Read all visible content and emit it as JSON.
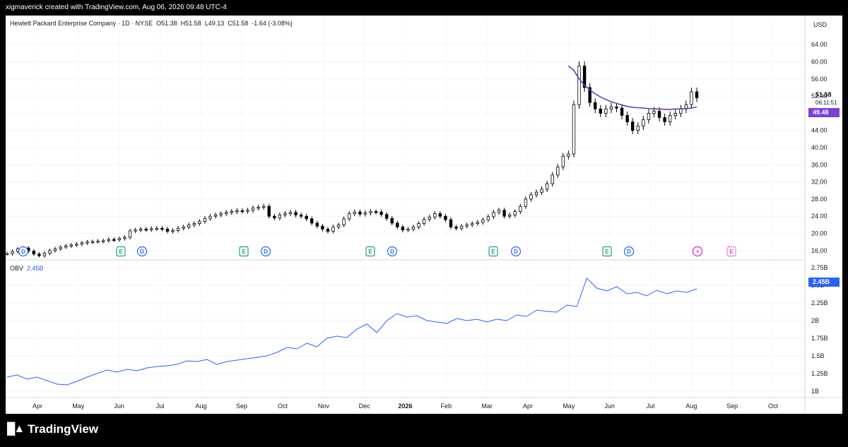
{
  "header": {
    "caption": "xigmaverick created with TradingView.com, Aug 06, 2026 09:48 UTC-4"
  },
  "legend": {
    "symbol": "Hewlett Packard Enterprise Company · 1D · NYSE",
    "open_label": "O",
    "open": "51.38",
    "high_label": "H",
    "high": "51.58",
    "low_label": "L",
    "low": "49.13",
    "close_label": "C",
    "close": "51.58",
    "change": "-1.64 (-3.08%)"
  },
  "currency": "USD",
  "price_axis": {
    "ticks": [
      "64.00",
      "60.00",
      "56.00",
      "52.00",
      "48.00",
      "44.00",
      "40.00",
      "36.00",
      "32.00",
      "28.00",
      "24.00",
      "20.00",
      "16.00"
    ]
  },
  "last_price": {
    "value": "51.58",
    "countdown": "06:11:51",
    "ma_value": "49.48"
  },
  "obv": {
    "label": "OBV",
    "value": "2.45B",
    "ticks": [
      "2.75B",
      "2.5B",
      "2.25B",
      "2B",
      "1.75B",
      "1.5B",
      "1.25B",
      "1B"
    ]
  },
  "time_axis": {
    "labels": [
      "Apr",
      "May",
      "Jun",
      "Jul",
      "Aug",
      "Sep",
      "Oct",
      "Nov",
      "Dec",
      "2026",
      "Feb",
      "Mar",
      "Apr",
      "May",
      "Jun",
      "Jul",
      "Aug",
      "Sep",
      "Oct"
    ]
  },
  "events": [
    {
      "type": "D",
      "label": "D"
    },
    {
      "type": "E",
      "label": "E"
    },
    {
      "type": "D",
      "label": "D"
    },
    {
      "type": "E",
      "label": "E"
    },
    {
      "type": "D",
      "label": "D"
    },
    {
      "type": "E",
      "label": "E"
    },
    {
      "type": "D",
      "label": "D"
    },
    {
      "type": "E",
      "label": "E"
    },
    {
      "type": "D",
      "label": "D"
    },
    {
      "type": "E",
      "label": "E"
    },
    {
      "type": "D",
      "label": "D"
    },
    {
      "type": "split",
      "label": ""
    },
    {
      "type": "E-future",
      "label": "E"
    }
  ],
  "colors": {
    "candle": "#000000",
    "ma": "#6a3fb5",
    "obv": "#2962ff",
    "earnings": "#1e9e8a",
    "dividend": "#2962ff",
    "future": "#e040d0"
  },
  "brand": {
    "name": "TradingView"
  },
  "chart_data": {
    "type": "candlestick",
    "price_range": [
      14.0,
      66.0
    ],
    "obv_range": [
      0.92,
      2.8
    ],
    "close_series": [
      15.3,
      15.8,
      16.4,
      16.6,
      15.9,
      15.2,
      14.8,
      15.4,
      16.0,
      16.4,
      16.8,
      17.1,
      17.3,
      17.5,
      17.8,
      18.0,
      18.1,
      18.2,
      18.3,
      18.6,
      18.5,
      18.8,
      19.1,
      20.6,
      20.8,
      21.0,
      20.9,
      21.1,
      21.2,
      21.0,
      20.5,
      20.7,
      21.2,
      21.5,
      22.0,
      22.3,
      22.8,
      23.5,
      24.0,
      24.3,
      24.6,
      24.9,
      25.1,
      25.3,
      25.2,
      25.4,
      25.9,
      26.1,
      26.3,
      24.0,
      23.6,
      24.3,
      24.6,
      24.9,
      24.3,
      24.0,
      23.4,
      22.4,
      21.7,
      21.0,
      20.5,
      21.5,
      22.0,
      23.4,
      24.6,
      25.0,
      24.5,
      24.8,
      25.1,
      25.0,
      24.4,
      23.5,
      22.4,
      21.5,
      20.8,
      21.0,
      21.5,
      22.3,
      23.3,
      23.8,
      24.6,
      24.0,
      23.2,
      21.5,
      21.2,
      21.7,
      22.0,
      22.3,
      22.6,
      23.2,
      23.9,
      24.9,
      25.4,
      24.0,
      24.3,
      25.1,
      26.3,
      28.0,
      29.0,
      29.6,
      30.3,
      31.6,
      33.6,
      35.5,
      38.0,
      38.5,
      50.0,
      59.0,
      54.0,
      50.5,
      49.0,
      48.0,
      49.0,
      49.5,
      49.2,
      47.5,
      46.0,
      44.0,
      45.0,
      46.5,
      48.0,
      48.5,
      47.0,
      46.0,
      47.5,
      48.0,
      49.0,
      50.0,
      53.0,
      51.58
    ],
    "ma_series": [
      59.0,
      58.0,
      56.0,
      54.5,
      53.5,
      52.5,
      51.8,
      51.2,
      50.7,
      50.3,
      49.9,
      49.6,
      49.4,
      49.3,
      49.2,
      49.1,
      49.0,
      49.0,
      48.9,
      48.9,
      49.0,
      49.0,
      49.1,
      49.2,
      49.48
    ],
    "obv_series": [
      1.2,
      1.23,
      1.17,
      1.2,
      1.15,
      1.1,
      1.09,
      1.14,
      1.2,
      1.25,
      1.3,
      1.27,
      1.31,
      1.29,
      1.33,
      1.35,
      1.36,
      1.38,
      1.43,
      1.42,
      1.45,
      1.38,
      1.42,
      1.44,
      1.46,
      1.48,
      1.5,
      1.55,
      1.62,
      1.6,
      1.68,
      1.63,
      1.75,
      1.78,
      1.76,
      1.88,
      1.95,
      1.83,
      2.0,
      2.1,
      2.05,
      2.07,
      2.0,
      1.98,
      1.96,
      2.03,
      2.0,
      2.02,
      1.98,
      2.02,
      2.0,
      2.08,
      2.06,
      2.15,
      2.13,
      2.12,
      2.22,
      2.2,
      2.6,
      2.46,
      2.42,
      2.48,
      2.38,
      2.4,
      2.35,
      2.43,
      2.38,
      2.42,
      2.4,
      2.45
    ]
  }
}
